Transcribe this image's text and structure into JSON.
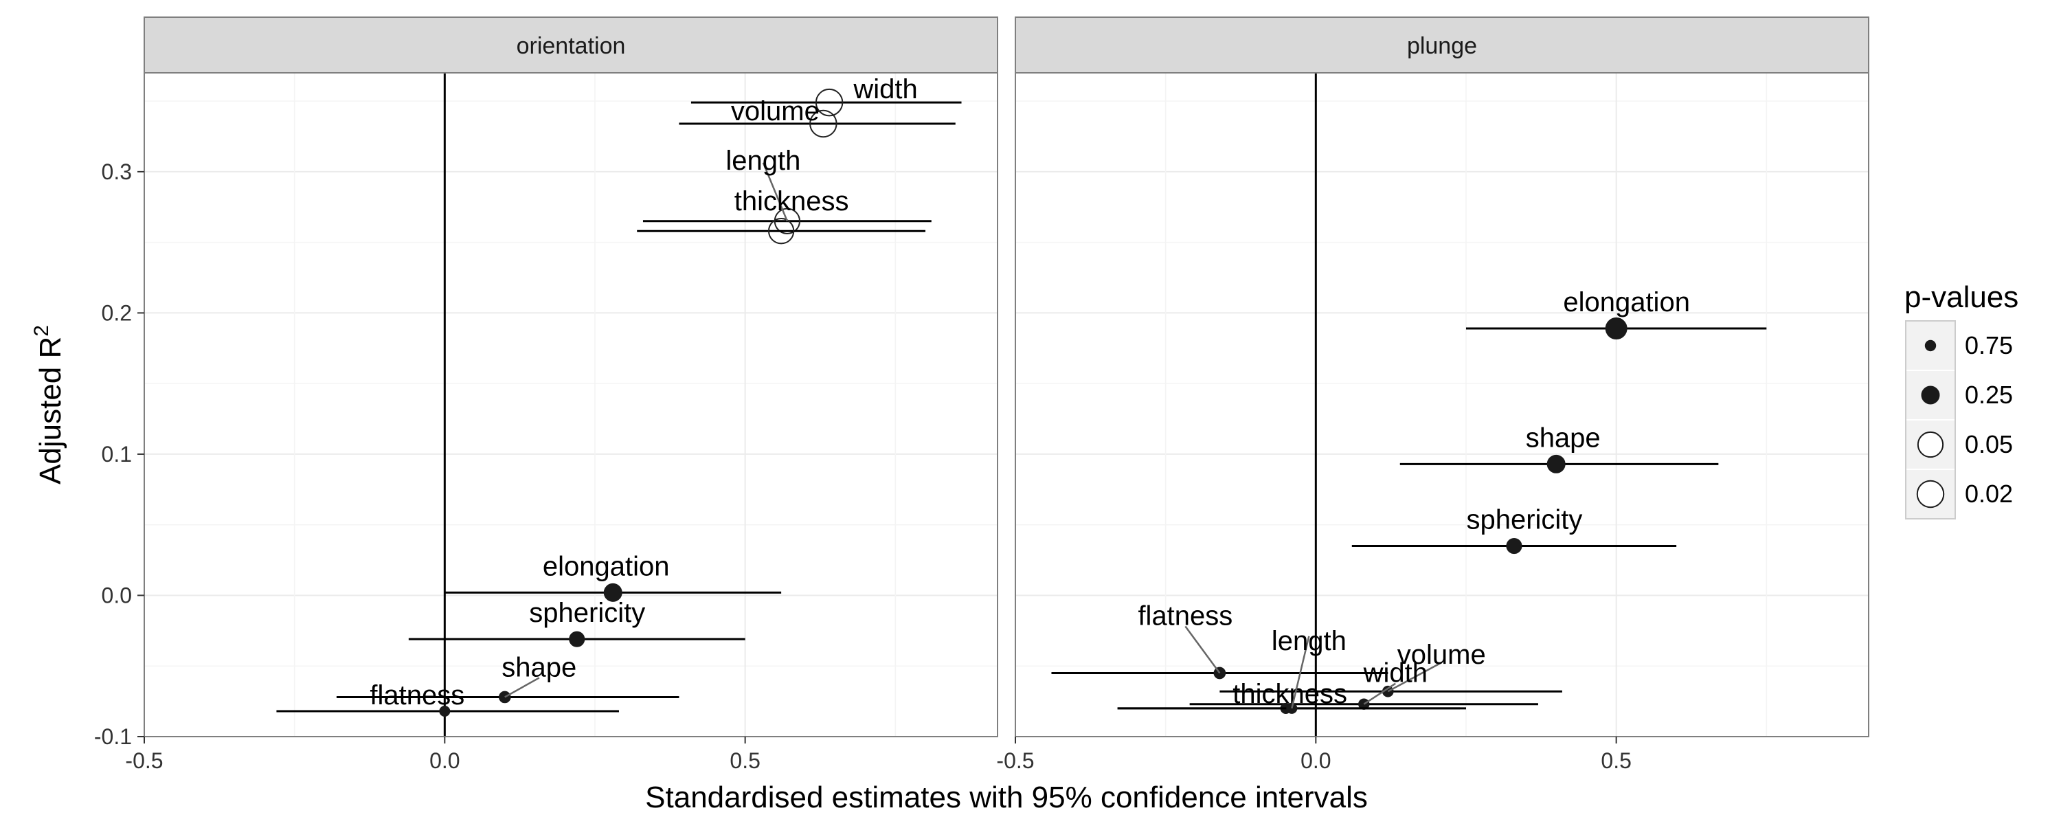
{
  "chart_data": {
    "type": "scatter",
    "xlabel": "Standardised estimates with 95% confidence intervals",
    "ylabel_main": "Adjusted R",
    "ylabel_sup": "2",
    "xlim": [
      -0.5,
      0.92
    ],
    "ylim": [
      -0.1,
      0.37
    ],
    "x_ticks": [
      -0.5,
      0.0,
      0.5
    ],
    "x_tick_labels": [
      "-0.5",
      "0.0",
      "0.5"
    ],
    "y_ticks": [
      -0.1,
      0.0,
      0.1,
      0.2,
      0.3
    ],
    "y_tick_labels": [
      "-0.1",
      "0.0",
      "0.1",
      "0.2",
      "0.3"
    ],
    "grid": true,
    "legend": {
      "title": "p-values",
      "placement": "right",
      "entries": [
        {
          "label": "0.75",
          "p": 0.75,
          "filled": true
        },
        {
          "label": "0.25",
          "p": 0.25,
          "filled": true
        },
        {
          "label": "0.05",
          "p": 0.05,
          "filled": false
        },
        {
          "label": "0.02",
          "p": 0.02,
          "filled": false
        }
      ]
    },
    "panels": [
      {
        "title": "orientation",
        "points": [
          {
            "label": "volume",
            "x": 0.63,
            "y": 0.334,
            "lo": 0.39,
            "hi": 0.85,
            "p": 0.02
          },
          {
            "label": "width",
            "x": 0.64,
            "y": 0.349,
            "lo": 0.41,
            "hi": 0.86,
            "p": 0.02
          },
          {
            "label": "length",
            "x": 0.57,
            "y": 0.265,
            "lo": 0.33,
            "hi": 0.81,
            "p": 0.05
          },
          {
            "label": "thickness",
            "x": 0.56,
            "y": 0.258,
            "lo": 0.32,
            "hi": 0.8,
            "p": 0.05
          },
          {
            "label": "elongation",
            "x": 0.28,
            "y": 0.002,
            "lo": 0.0,
            "hi": 0.56,
            "p": 0.25
          },
          {
            "label": "sphericity",
            "x": 0.22,
            "y": -0.031,
            "lo": -0.06,
            "hi": 0.5,
            "p": 0.35
          },
          {
            "label": "shape",
            "x": 0.1,
            "y": -0.072,
            "lo": -0.18,
            "hi": 0.39,
            "p": 0.6
          },
          {
            "label": "flatness",
            "x": 0.0,
            "y": -0.082,
            "lo": -0.28,
            "hi": 0.29,
            "p": 0.95
          }
        ]
      },
      {
        "title": "plunge",
        "points": [
          {
            "label": "elongation",
            "x": 0.5,
            "y": 0.189,
            "lo": 0.25,
            "hi": 0.75,
            "p": 0.15
          },
          {
            "label": "shape",
            "x": 0.4,
            "y": 0.093,
            "lo": 0.14,
            "hi": 0.67,
            "p": 0.25
          },
          {
            "label": "sphericity",
            "x": 0.33,
            "y": 0.035,
            "lo": 0.06,
            "hi": 0.6,
            "p": 0.35
          },
          {
            "label": "flatness",
            "x": -0.16,
            "y": -0.055,
            "lo": -0.44,
            "hi": 0.12,
            "p": 0.6
          },
          {
            "label": "volume",
            "x": 0.12,
            "y": -0.068,
            "lo": -0.16,
            "hi": 0.41,
            "p": 0.7
          },
          {
            "label": "width",
            "x": 0.08,
            "y": -0.077,
            "lo": -0.21,
            "hi": 0.37,
            "p": 0.75
          },
          {
            "label": "thickness",
            "x": -0.05,
            "y": -0.08,
            "lo": -0.33,
            "hi": 0.24,
            "p": 0.85
          },
          {
            "label": "length",
            "x": -0.04,
            "y": -0.08,
            "lo": -0.33,
            "hi": 0.25,
            "p": 0.9
          }
        ]
      }
    ]
  }
}
